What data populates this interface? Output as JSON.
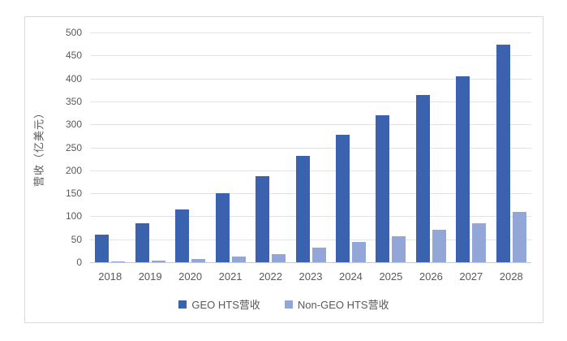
{
  "chart_data": {
    "type": "bar",
    "title": "",
    "xlabel": "",
    "ylabel": "营收（亿美元）",
    "categories": [
      "2018",
      "2019",
      "2020",
      "2021",
      "2022",
      "2023",
      "2024",
      "2025",
      "2026",
      "2027",
      "2028"
    ],
    "series": [
      {
        "name": "GEO HTS营收",
        "color": "#3a62ae",
        "values": [
          60,
          85,
          115,
          150,
          188,
          232,
          277,
          320,
          364,
          405,
          473
        ]
      },
      {
        "name": "Non-GEO HTS营收",
        "color": "#92a6d8",
        "values": [
          2,
          4,
          7,
          12,
          18,
          32,
          44,
          56,
          70,
          84,
          110
        ]
      }
    ],
    "ylim": [
      0,
      500
    ],
    "yticks": [
      0,
      50,
      100,
      150,
      200,
      250,
      300,
      350,
      400,
      450,
      500
    ],
    "grid": "horizontal",
    "legend_position": "bottom"
  },
  "frame": {
    "border_color": "#d9d9d9",
    "background": "#ffffff",
    "gridline_color": "#e3e3e3",
    "axis_color": "#c9c9c9",
    "text_color": "#595959"
  }
}
